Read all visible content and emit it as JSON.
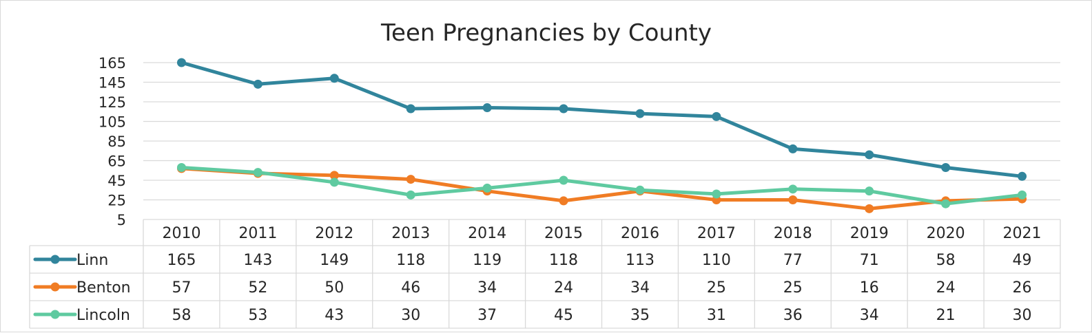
{
  "chart_data": {
    "type": "line",
    "title": "Teen Pregnancies by County",
    "xlabel": "",
    "ylabel": "",
    "categories": [
      "2010",
      "2011",
      "2012",
      "2013",
      "2014",
      "2015",
      "2016",
      "2017",
      "2018",
      "2019",
      "2020",
      "2021"
    ],
    "ylim": [
      5,
      165
    ],
    "yticks": [
      5,
      25,
      45,
      65,
      85,
      105,
      125,
      145,
      165
    ],
    "grid": true,
    "legend": "data-table",
    "series": [
      {
        "name": "Linn",
        "color": "#31859c",
        "values": [
          165,
          143,
          149,
          118,
          119,
          118,
          113,
          110,
          77,
          71,
          58,
          49
        ]
      },
      {
        "name": "Benton",
        "color": "#f07c24",
        "values": [
          57,
          52,
          50,
          46,
          34,
          24,
          34,
          25,
          25,
          16,
          24,
          26
        ]
      },
      {
        "name": "Lincoln",
        "color": "#5fcaa0",
        "values": [
          58,
          53,
          43,
          30,
          37,
          45,
          35,
          31,
          36,
          34,
          21,
          30
        ]
      }
    ]
  }
}
